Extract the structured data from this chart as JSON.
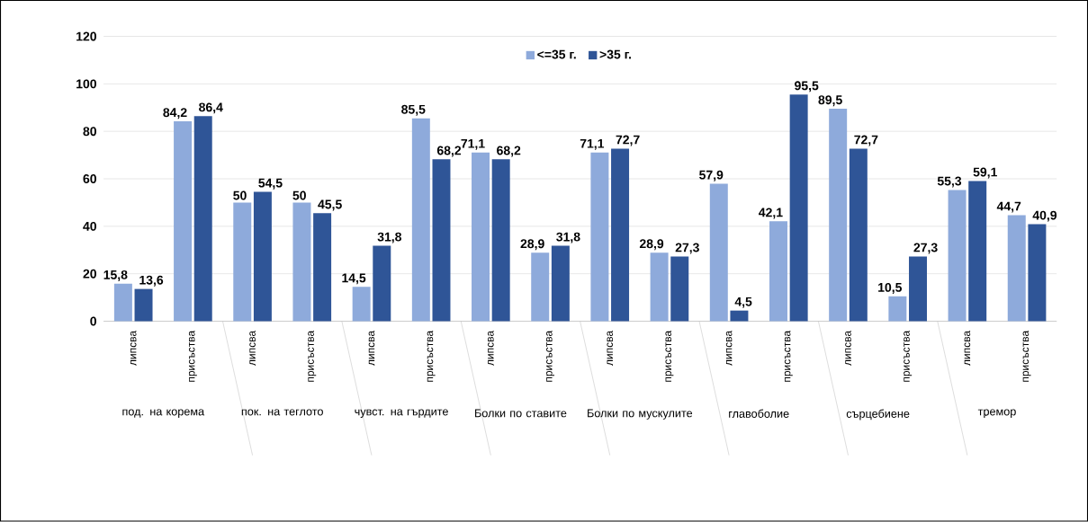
{
  "chart_data": {
    "type": "bar",
    "categories": [
      "липсва",
      "присъства",
      "липсва",
      "присъства",
      "липсва",
      "присъства",
      "липсва",
      "присъства",
      "липсва",
      "присъства",
      "липсва",
      "присъства",
      "липсва",
      "присъства",
      "липсва",
      "присъства"
    ],
    "series": [
      {
        "name": "<=35 г.",
        "color": "#8eaadb",
        "values": [
          15.8,
          84.2,
          50,
          50,
          14.5,
          85.5,
          71.1,
          28.9,
          71.1,
          28.9,
          57.9,
          42.1,
          89.5,
          10.5,
          55.3,
          44.7
        ],
        "value_labels": [
          "15,8",
          "84,2",
          "50",
          "50",
          "14,5",
          "85,5",
          "71,1",
          "28,9",
          "71,1",
          "28,9",
          "57,9",
          "42,1",
          "89,5",
          "10,5",
          "55,3",
          "44,7"
        ]
      },
      {
        "name": ">35 г.",
        "color": "#2f5597",
        "values": [
          13.6,
          86.4,
          54.5,
          45.5,
          31.8,
          68.2,
          68.2,
          31.8,
          72.7,
          27.3,
          4.5,
          95.5,
          72.7,
          27.3,
          59.1,
          40.9
        ],
        "value_labels": [
          "13,6",
          "86,4",
          "54,5",
          "45,5",
          "31,8",
          "68,2",
          "68,2",
          "31,8",
          "72,7",
          "27,3",
          "4,5",
          "95,5",
          "72,7",
          "27,3",
          "59,1",
          "40,9"
        ]
      }
    ],
    "annotations": [
      "под. на корема",
      "пок. на теглото",
      "чувст. на гърдите",
      "Болки по ставите",
      "Болки по мускулите",
      "главоболие",
      "сърцебиене",
      "тремор"
    ],
    "ylim": [
      0,
      120
    ],
    "yticks": [
      0,
      20,
      40,
      60,
      80,
      100,
      120
    ],
    "grid": "y",
    "legend": "top"
  }
}
